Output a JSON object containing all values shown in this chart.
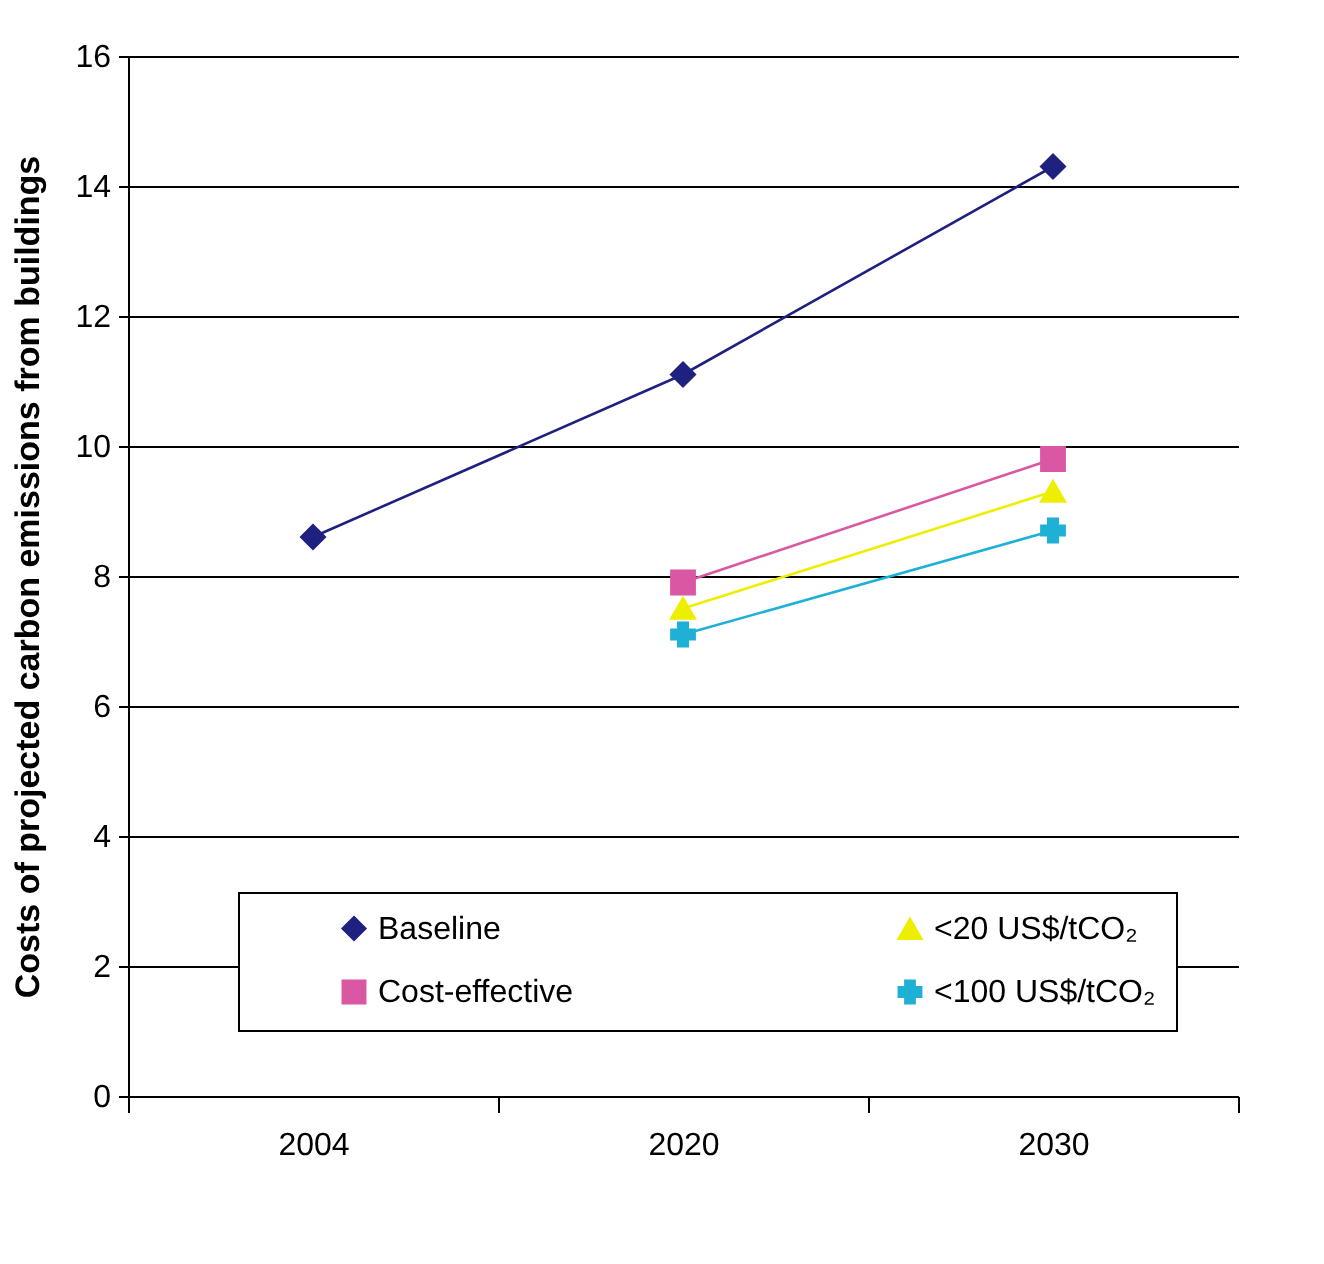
{
  "chart_data": {
    "type": "line",
    "ylabel": "Costs of projected carbon emissions from buildings",
    "categories": [
      "2004",
      "2020",
      "2030"
    ],
    "series": [
      {
        "name": "Baseline",
        "color": "#1f2180",
        "marker": "diamond",
        "values": [
          8.6,
          11.1,
          14.3
        ]
      },
      {
        "name": "Cost-effective",
        "color": "#d957a3",
        "marker": "square",
        "values": [
          null,
          7.9,
          9.8
        ]
      },
      {
        "name": "<20 US$/tCO₂",
        "color": "#eeee00",
        "marker": "triangle",
        "values": [
          null,
          7.5,
          9.3
        ]
      },
      {
        "name": "<100 US$/tCO₂",
        "color": "#1fb0d6",
        "marker": "cross",
        "values": [
          null,
          7.1,
          8.7
        ]
      }
    ],
    "ylim": [
      0,
      16
    ],
    "yticks": [
      0,
      2,
      4,
      6,
      8,
      10,
      12,
      14,
      16
    ],
    "grid": "y",
    "legend": "bottom"
  }
}
